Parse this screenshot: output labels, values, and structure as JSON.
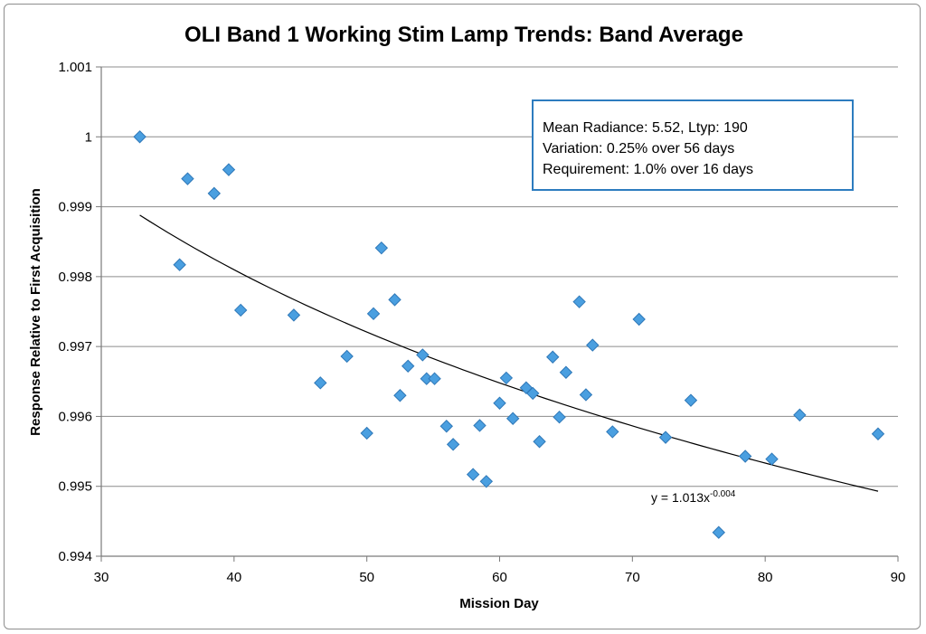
{
  "chart_data": {
    "type": "scatter",
    "title": "OLI Band 1 Working Stim Lamp Trends: Band Average",
    "xlabel": "Mission Day",
    "ylabel": "Response Relative to First Acquisition",
    "xlim": [
      30,
      90
    ],
    "ylim": [
      0.994,
      1.001
    ],
    "x_ticks": [
      30,
      40,
      50,
      60,
      70,
      80,
      90
    ],
    "x_tick_labels": [
      "30",
      "40",
      "50",
      "60",
      "70",
      "80",
      "90"
    ],
    "y_ticks": [
      0.994,
      0.995,
      0.996,
      0.997,
      0.998,
      0.999,
      1.0,
      1.001
    ],
    "y_tick_labels": [
      "0.994",
      "0.995",
      "0.996",
      "0.997",
      "0.998",
      "0.999",
      "1",
      "1.001"
    ],
    "grid": "horizontal",
    "marker_color": "#4a9fe0",
    "series": [
      {
        "name": "Band Average",
        "points": [
          [
            32.9,
            1.0
          ],
          [
            35.9,
            0.99817
          ],
          [
            36.5,
            0.9994
          ],
          [
            38.5,
            0.99919
          ],
          [
            39.6,
            0.99953
          ],
          [
            40.5,
            0.99752
          ],
          [
            44.5,
            0.99745
          ],
          [
            46.5,
            0.99648
          ],
          [
            48.5,
            0.99686
          ],
          [
            50.0,
            0.99576
          ],
          [
            50.5,
            0.99747
          ],
          [
            51.1,
            0.99841
          ],
          [
            52.1,
            0.99767
          ],
          [
            52.5,
            0.9963
          ],
          [
            53.1,
            0.99672
          ],
          [
            54.2,
            0.99688
          ],
          [
            54.5,
            0.99654
          ],
          [
            55.1,
            0.99654
          ],
          [
            56.0,
            0.99586
          ],
          [
            56.5,
            0.9956
          ],
          [
            58.0,
            0.99517
          ],
          [
            58.5,
            0.99587
          ],
          [
            59.0,
            0.99507
          ],
          [
            60.0,
            0.99619
          ],
          [
            60.5,
            0.99655
          ],
          [
            61.0,
            0.99597
          ],
          [
            62.0,
            0.99641
          ],
          [
            62.5,
            0.99633
          ],
          [
            63.0,
            0.99564
          ],
          [
            64.0,
            0.99685
          ],
          [
            64.5,
            0.99599
          ],
          [
            65.0,
            0.99663
          ],
          [
            66.0,
            0.99764
          ],
          [
            66.5,
            0.99631
          ],
          [
            67.0,
            0.99702
          ],
          [
            68.5,
            0.99578
          ],
          [
            70.5,
            0.99739
          ],
          [
            72.5,
            0.9957
          ],
          [
            74.4,
            0.99623
          ],
          [
            76.5,
            0.99434
          ],
          [
            78.5,
            0.99543
          ],
          [
            80.5,
            0.99539
          ],
          [
            82.6,
            0.99602
          ],
          [
            88.5,
            0.99575
          ]
        ]
      }
    ],
    "trendline": {
      "type": "power",
      "a": 1.013,
      "b": -0.004,
      "x_range": [
        32.9,
        88.5
      ],
      "y_start": 0.99888,
      "y_end": 0.99493,
      "label_base": "y = 1.013x",
      "label_exp": "-0.004"
    },
    "annotation_box": {
      "lines": [
        "Mean Radiance: 5.52, Ltyp: 190",
        "Variation: 0.25% over 56 days",
        "Requirement: 1.0% over 16 days"
      ],
      "border_color": "#2d7cbf"
    }
  }
}
